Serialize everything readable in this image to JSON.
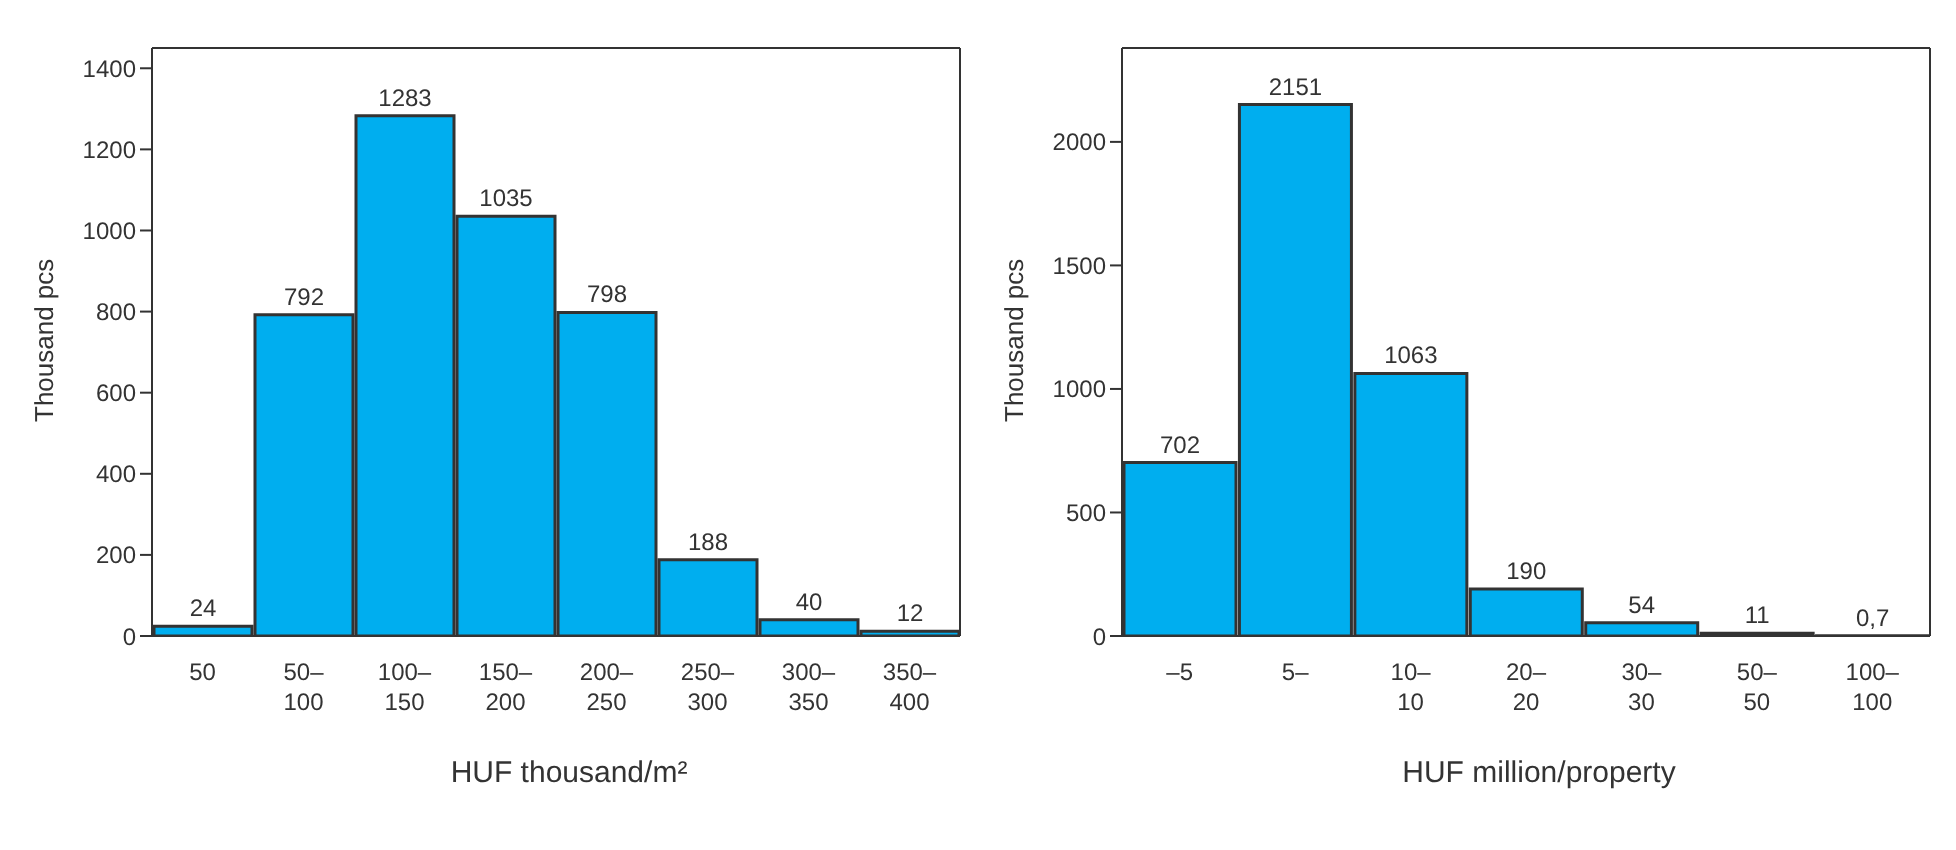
{
  "chart_data": [
    {
      "type": "bar",
      "categories": [
        "50",
        "50–\n100",
        "100–\n150",
        "150–\n200",
        "200–\n250",
        "250–\n300",
        "300–\n350",
        "350–\n400"
      ],
      "values": [
        24,
        792,
        1283,
        1035,
        798,
        188,
        40,
        12
      ],
      "color": "#00aeef",
      "ylim": [
        0,
        1450
      ],
      "yticks": [
        0,
        200,
        400,
        600,
        800,
        1000,
        1200,
        1400
      ],
      "ylabel": "Thousand pcs",
      "xlabel": "HUF thousand/m²",
      "data_labels": true,
      "grid": false,
      "legend": false
    },
    {
      "type": "bar",
      "categories": [
        "–5",
        "5–",
        "10–\n10",
        "20–\n20",
        "30–\n30",
        "50–\n50",
        "100–\n100"
      ],
      "values": [
        702,
        2151,
        1063,
        190,
        54,
        11,
        0.7
      ],
      "value_labels": [
        "702",
        "2151",
        "1063",
        "190",
        "54",
        "11",
        "0,7"
      ],
      "color": "#00aeef",
      "ylim": [
        0,
        2380
      ],
      "yticks": [
        0,
        500,
        1000,
        1500,
        2000
      ],
      "ylabel": "Thousand pcs",
      "xlabel": "HUF million/property",
      "grid": false,
      "legend": false
    }
  ]
}
